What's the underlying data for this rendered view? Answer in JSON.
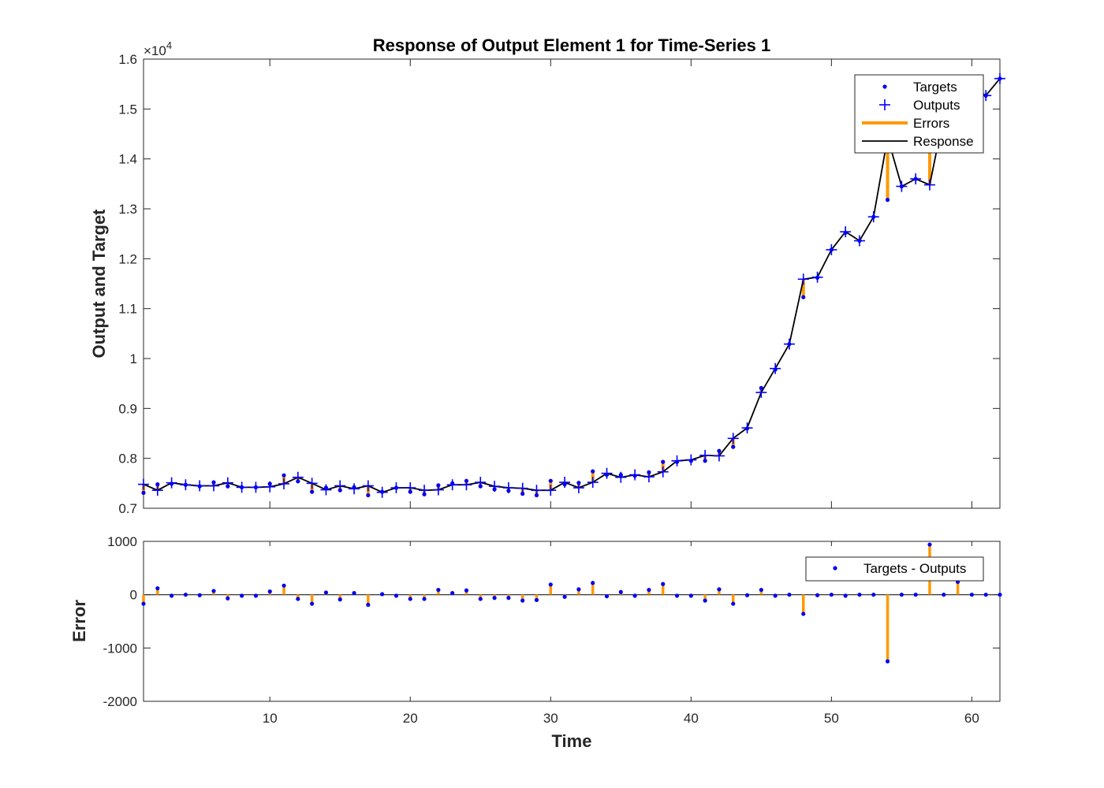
{
  "chart_data": [
    {
      "type": "line",
      "title": "Response of Output Element 1 for Time-Series 1",
      "ylabel": "Output and Target",
      "xlabel": "",
      "y_exponent_label": "×10",
      "y_exponent_power": "4",
      "xlim": [
        1,
        62
      ],
      "ylim": [
        0.7,
        1.6
      ],
      "yticks": [
        "0.7",
        "0.8",
        "0.9",
        "1",
        "1.1",
        "1.2",
        "1.3",
        "1.4",
        "1.5",
        "1.6"
      ],
      "legend": {
        "position": "top-right",
        "entries": [
          "Targets",
          "Outputs",
          "Errors",
          "Response"
        ]
      },
      "colors": {
        "targets": "#0000ee",
        "outputs": "#0000ff",
        "errors": "#ff9900",
        "response": "#000000"
      },
      "x": [
        1,
        2,
        3,
        4,
        5,
        6,
        7,
        8,
        9,
        10,
        11,
        12,
        13,
        14,
        15,
        16,
        17,
        18,
        19,
        20,
        21,
        22,
        23,
        24,
        25,
        26,
        27,
        28,
        29,
        30,
        31,
        32,
        33,
        34,
        35,
        36,
        37,
        38,
        39,
        40,
        41,
        42,
        43,
        44,
        45,
        46,
        47,
        48,
        49,
        50,
        51,
        52,
        53,
        54,
        55,
        56,
        57,
        58,
        59,
        60,
        61,
        62
      ],
      "series": [
        {
          "name": "Targets",
          "values": [
            0.731,
            0.748,
            0.749,
            0.747,
            0.744,
            0.752,
            0.744,
            0.742,
            0.742,
            0.749,
            0.766,
            0.754,
            0.733,
            0.741,
            0.736,
            0.742,
            0.726,
            0.733,
            0.741,
            0.733,
            0.728,
            0.746,
            0.75,
            0.755,
            0.744,
            0.738,
            0.735,
            0.729,
            0.726,
            0.755,
            0.748,
            0.751,
            0.774,
            0.767,
            0.767,
            0.765,
            0.772,
            0.793,
            0.793,
            0.795,
            0.795,
            0.815,
            0.823,
            0.86,
            0.941,
            0.978,
            1.029,
            1.123,
            1.162,
            1.218,
            1.252,
            1.236,
            1.284,
            1.318,
            1.345,
            1.36,
            1.442,
            1.487,
            1.546,
            1.545,
            1.527,
            1.561
          ]
        },
        {
          "name": "Outputs",
          "values": [
            0.748,
            0.736,
            0.751,
            0.747,
            0.745,
            0.745,
            0.751,
            0.742,
            0.742,
            0.743,
            0.749,
            0.762,
            0.75,
            0.737,
            0.745,
            0.739,
            0.745,
            0.732,
            0.741,
            0.741,
            0.736,
            0.737,
            0.747,
            0.747,
            0.752,
            0.744,
            0.741,
            0.74,
            0.736,
            0.736,
            0.752,
            0.741,
            0.752,
            0.77,
            0.762,
            0.767,
            0.763,
            0.773,
            0.795,
            0.797,
            0.806,
            0.805,
            0.84,
            0.861,
            0.932,
            0.98,
            1.029,
            1.159,
            1.163,
            1.218,
            1.254,
            1.236,
            1.284,
            1.443,
            1.345,
            1.36,
            1.348,
            1.487,
            1.522,
            1.545,
            1.527,
            1.561
          ]
        }
      ]
    },
    {
      "type": "line",
      "title": "",
      "ylabel": "Error",
      "xlabel": "Time",
      "xlim": [
        1,
        62
      ],
      "ylim": [
        -2000,
        1000
      ],
      "yticks": [
        "-2000",
        "-1000",
        "0",
        "1000"
      ],
      "xticks": [
        "10",
        "20",
        "30",
        "40",
        "50",
        "60"
      ],
      "legend": {
        "position": "top-right",
        "entries": [
          "Targets - Outputs"
        ]
      },
      "x": [
        1,
        2,
        3,
        4,
        5,
        6,
        7,
        8,
        9,
        10,
        11,
        12,
        13,
        14,
        15,
        16,
        17,
        18,
        19,
        20,
        21,
        22,
        23,
        24,
        25,
        26,
        27,
        28,
        29,
        30,
        31,
        32,
        33,
        34,
        35,
        36,
        37,
        38,
        39,
        40,
        41,
        42,
        43,
        44,
        45,
        46,
        47,
        48,
        49,
        50,
        51,
        52,
        53,
        54,
        55,
        56,
        57,
        58,
        59,
        60,
        61,
        62
      ],
      "series": [
        {
          "name": "Targets - Outputs",
          "values": [
            -170,
            120,
            -20,
            0,
            -10,
            70,
            -70,
            -20,
            -20,
            60,
            170,
            -80,
            -170,
            40,
            -90,
            30,
            -190,
            10,
            -20,
            -80,
            -80,
            90,
            30,
            80,
            -80,
            -60,
            -60,
            -110,
            -100,
            190,
            -40,
            100,
            220,
            -30,
            50,
            -20,
            90,
            200,
            -20,
            -20,
            -110,
            100,
            -170,
            -10,
            90,
            -20,
            0,
            -360,
            -10,
            0,
            -20,
            0,
            0,
            -1250,
            0,
            0,
            940,
            0,
            240,
            0,
            0,
            0
          ]
        }
      ]
    }
  ]
}
